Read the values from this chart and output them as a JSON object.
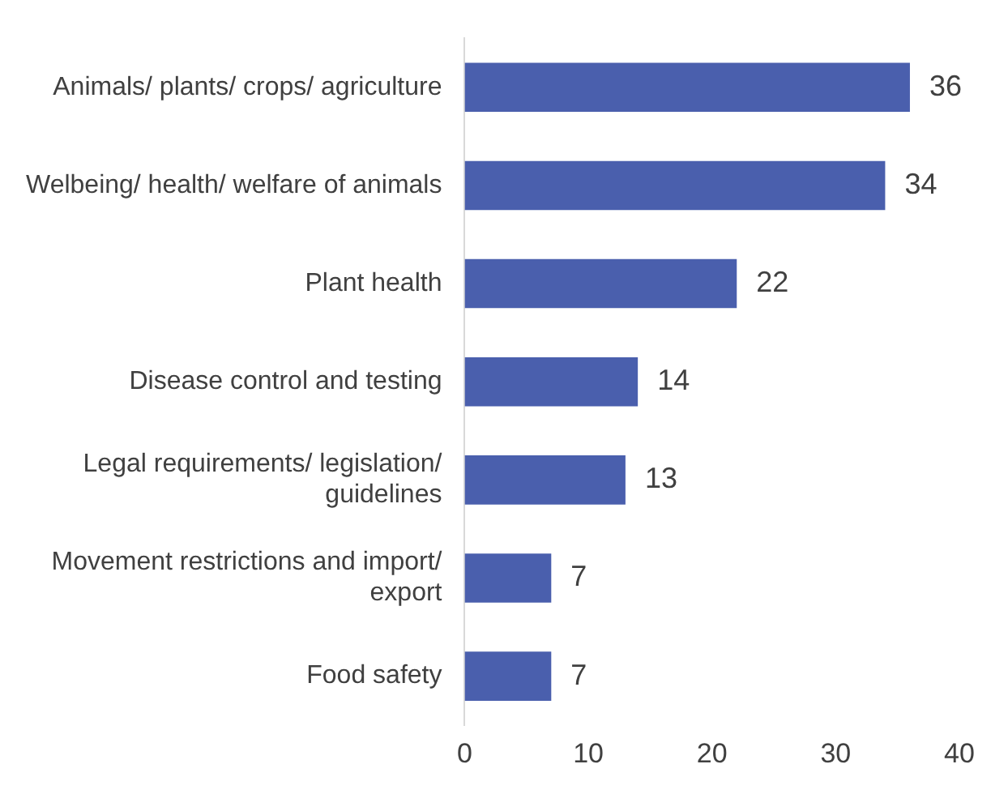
{
  "chart_data": {
    "type": "bar",
    "orientation": "horizontal",
    "categories": [
      "Animals/ plants/ crops/ agriculture",
      "Welbeing/ health/ welfare of animals",
      "Plant health",
      "Disease control and testing",
      "Legal requirements/ legislation/ guidelines",
      "Movement restrictions and import/ export",
      "Food safety"
    ],
    "values": [
      36,
      34,
      22,
      14,
      13,
      7,
      7
    ],
    "color": "#4a5fad",
    "xlim": [
      0,
      40
    ],
    "xticks": [
      0,
      10,
      20,
      30,
      40
    ],
    "grid": false,
    "data_labels": true
  }
}
